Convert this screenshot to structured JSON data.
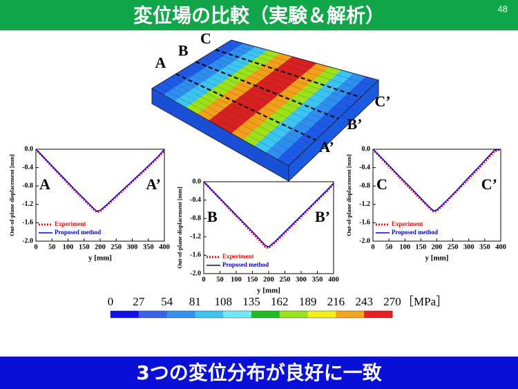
{
  "header": {
    "title": "変位場の比較（実験＆解析）",
    "page_number": "48"
  },
  "model": {
    "labels": [
      "A",
      "B",
      "C",
      "A’",
      "B’",
      "C’"
    ]
  },
  "chart_data": [
    {
      "type": "line",
      "xlabel": "y [mm]",
      "ylabel": "Out-of-plane displacement [mm]",
      "annotations": [
        "A",
        "A’"
      ],
      "x": [
        0,
        40,
        80,
        120,
        160,
        180,
        190,
        200,
        220,
        260,
        300,
        340,
        380,
        400
      ],
      "series": [
        {
          "name": "Experiment",
          "color": "#ff0000",
          "values": [
            0,
            -0.3,
            -0.6,
            -0.89,
            -1.17,
            -1.31,
            -1.37,
            -1.35,
            -1.23,
            -0.97,
            -0.71,
            -0.45,
            -0.18,
            -0.04
          ]
        },
        {
          "name": "Proposed method",
          "color": "#0000cc",
          "values": [
            0,
            -0.29,
            -0.58,
            -0.87,
            -1.15,
            -1.29,
            -1.35,
            -1.33,
            -1.21,
            -0.95,
            -0.69,
            -0.43,
            -0.16,
            0
          ]
        }
      ],
      "xlim": [
        0,
        400
      ],
      "xticks": [
        0,
        50,
        100,
        150,
        200,
        250,
        300,
        350,
        400
      ],
      "ylim": [
        -2.0,
        0
      ],
      "yticks": [
        {
          "value": 0,
          "label": "0.0"
        },
        -0.4,
        -0.8,
        -1.2,
        -1.6,
        {
          "value": -2.0,
          "label": "-2.0"
        }
      ],
      "legend": "lower left"
    },
    {
      "type": "line",
      "xlabel": "y [mm]",
      "ylabel": "Out-of-plane displacement [mm]",
      "annotations": [
        "B",
        "B’"
      ],
      "x": [
        0,
        40,
        80,
        120,
        160,
        180,
        190,
        200,
        220,
        260,
        300,
        340,
        380,
        400
      ],
      "series": [
        {
          "name": "Experiment",
          "color": "#ff0000",
          "values": [
            0,
            -0.3,
            -0.6,
            -0.89,
            -1.19,
            -1.34,
            -1.42,
            -1.44,
            -1.32,
            -1.04,
            -0.76,
            -0.48,
            -0.2,
            -0.05
          ]
        },
        {
          "name": "Proposed method",
          "color": "#0000cc",
          "values": [
            0,
            -0.29,
            -0.58,
            -0.87,
            -1.16,
            -1.31,
            -1.39,
            -1.42,
            -1.3,
            -1.02,
            -0.74,
            -0.46,
            -0.18,
            -0.03
          ]
        }
      ],
      "xlim": [
        0,
        400
      ],
      "xticks": [
        0,
        50,
        100,
        150,
        200,
        250,
        300,
        350,
        400
      ],
      "ylim": [
        -2.0,
        0
      ],
      "yticks": [
        {
          "value": 0,
          "label": "0.0"
        },
        -0.4,
        -0.8,
        -1.2,
        -1.6,
        {
          "value": -2.0,
          "label": "-2.0"
        }
      ],
      "legend": "lower left"
    },
    {
      "type": "line",
      "xlabel": "y [mm]",
      "ylabel": "Out-of-plane displacement [mm]",
      "annotations": [
        "C",
        "C’"
      ],
      "x": [
        0,
        40,
        80,
        120,
        160,
        180,
        190,
        200,
        220,
        260,
        300,
        340,
        380,
        400
      ],
      "series": [
        {
          "name": "Experiment",
          "color": "#ff0000",
          "values": [
            0,
            -0.3,
            -0.59,
            -0.88,
            -1.16,
            -1.3,
            -1.36,
            -1.34,
            -1.21,
            -0.93,
            -0.64,
            -0.35,
            -0.05,
            0
          ]
        },
        {
          "name": "Proposed method",
          "color": "#0000cc",
          "values": [
            0,
            -0.28,
            -0.57,
            -0.85,
            -1.14,
            -1.28,
            -1.34,
            -1.32,
            -1.19,
            -0.91,
            -0.61,
            -0.32,
            -0.02,
            0
          ]
        }
      ],
      "xlim": [
        0,
        400
      ],
      "xticks": [
        0,
        50,
        100,
        150,
        200,
        250,
        300,
        350,
        400
      ],
      "ylim": [
        -2.0,
        0
      ],
      "yticks": [
        {
          "value": 0,
          "label": "0.0"
        },
        -0.4,
        -0.8,
        -1.2,
        -1.6,
        {
          "value": -2.0,
          "label": "-2.0"
        }
      ],
      "legend": "lower left"
    }
  ],
  "colorbar": {
    "ticks": [
      0,
      27,
      54,
      81,
      108,
      135,
      162,
      189,
      216,
      243,
      270
    ],
    "unit": "［MPa］",
    "colors": [
      "#1010e8",
      "#3b63ee",
      "#2f95f0",
      "#3dc4f2",
      "#70eaf6",
      "#1ec01e",
      "#9be21a",
      "#f2ef1a",
      "#f5a51a",
      "#e82020"
    ]
  },
  "footer": {
    "text": "3つの変位分布が良好に一致"
  }
}
